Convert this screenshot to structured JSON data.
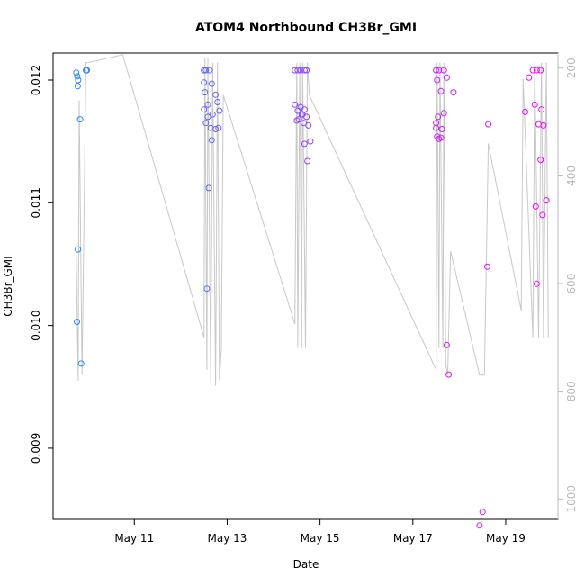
{
  "chart_data": {
    "type": "scatter",
    "title": "ATOM4 Northbound CH3Br_GMI",
    "xlabel": "Date",
    "ylabel": "CH3Br_GMI",
    "xlim": [
      "2018-05-09T06:00",
      "2018-05-20T03:00"
    ],
    "ylim": [
      0.00842,
      0.01222
    ],
    "x_ticks": [
      "May 11",
      "May 13",
      "May 15",
      "May 17",
      "May 19"
    ],
    "y_ticks": [
      "0.009",
      "0.010",
      "0.011",
      "0.012"
    ],
    "y2_ticks": [
      "200",
      "400",
      "600",
      "800",
      "1000"
    ],
    "y2_reversed": true,
    "y2lim": [
      1038,
      172
    ],
    "point_color_gradient": [
      "#1e90ff",
      "#ff00ff"
    ],
    "line_color": "#c8c8c8",
    "series": [
      {
        "points": [
          [
            "2018-05-09T18:00",
            0.01206
          ],
          [
            "2018-05-09T18:30",
            0.01203
          ],
          [
            "2018-05-09T19:00",
            0.012
          ],
          [
            "2018-05-09T18:45",
            0.01195
          ],
          [
            "2018-05-09T20:00",
            0.01168
          ],
          [
            "2018-05-09T18:50",
            0.01062
          ],
          [
            "2018-05-09T18:20",
            0.01003
          ],
          [
            "2018-05-09T20:30",
            0.00969
          ],
          [
            "2018-05-09T23:00",
            0.01208
          ],
          [
            "2018-05-09T23:30",
            0.01208
          ],
          [
            "2018-05-12T12:00",
            0.01208
          ],
          [
            "2018-05-12T13:00",
            0.01208
          ],
          [
            "2018-05-12T15:00",
            0.01208
          ],
          [
            "2018-05-12T12:00",
            0.01198
          ],
          [
            "2018-05-12T12:30",
            0.0119
          ],
          [
            "2018-05-12T16:00",
            0.01197
          ],
          [
            "2018-05-12T12:00",
            0.01176
          ],
          [
            "2018-05-12T14:00",
            0.0118
          ],
          [
            "2018-05-12T18:00",
            0.01188
          ],
          [
            "2018-05-12T19:00",
            0.01182
          ],
          [
            "2018-05-12T20:00",
            0.01175
          ],
          [
            "2018-05-12T14:00",
            0.0117
          ],
          [
            "2018-05-12T13:00",
            0.01165
          ],
          [
            "2018-05-12T16:30",
            0.01172
          ],
          [
            "2018-05-12T15:30",
            0.01161
          ],
          [
            "2018-05-12T18:00",
            0.0116
          ],
          [
            "2018-05-12T19:30",
            0.01161
          ],
          [
            "2018-05-12T16:00",
            0.01151
          ],
          [
            "2018-05-12T14:30",
            0.01112
          ],
          [
            "2018-05-12T13:30",
            0.0103
          ],
          [
            "2018-05-14T11:00",
            0.01208
          ],
          [
            "2018-05-14T12:30",
            0.01208
          ],
          [
            "2018-05-14T14:00",
            0.01208
          ],
          [
            "2018-05-14T16:00",
            0.01208
          ],
          [
            "2018-05-14T17:00",
            0.01208
          ],
          [
            "2018-05-14T11:00",
            0.0118
          ],
          [
            "2018-05-14T12:30",
            0.01175
          ],
          [
            "2018-05-14T14:00",
            0.01178
          ],
          [
            "2018-05-14T15:00",
            0.01172
          ],
          [
            "2018-05-14T16:00",
            0.01176
          ],
          [
            "2018-05-14T17:00",
            0.0117
          ],
          [
            "2018-05-14T13:00",
            0.01168
          ],
          [
            "2018-05-14T15:30",
            0.01165
          ],
          [
            "2018-05-14T12:00",
            0.01167
          ],
          [
            "2018-05-14T14:30",
            0.01172
          ],
          [
            "2018-05-14T18:00",
            0.01163
          ],
          [
            "2018-05-14T16:00",
            0.01148
          ],
          [
            "2018-05-14T19:00",
            0.0115
          ],
          [
            "2018-05-14T17:30",
            0.01134
          ],
          [
            "2018-05-17T12:00",
            0.01208
          ],
          [
            "2018-05-17T13:30",
            0.01208
          ],
          [
            "2018-05-17T16:00",
            0.01208
          ],
          [
            "2018-05-17T14:30",
            0.01191
          ],
          [
            "2018-05-17T12:30",
            0.012
          ],
          [
            "2018-05-17T17:30",
            0.01202
          ],
          [
            "2018-05-17T21:00",
            0.0119
          ],
          [
            "2018-05-17T16:00",
            0.01173
          ],
          [
            "2018-05-17T13:00",
            0.0117
          ],
          [
            "2018-05-17T12:00",
            0.01165
          ],
          [
            "2018-05-17T12:00",
            0.01161
          ],
          [
            "2018-05-17T15:00",
            0.0116
          ],
          [
            "2018-05-17T12:30",
            0.01154
          ],
          [
            "2018-05-17T13:30",
            0.01152
          ],
          [
            "2018-05-17T14:30",
            0.01153
          ],
          [
            "2018-05-17T17:30",
            0.00984
          ],
          [
            "2018-05-17T18:30",
            0.0096
          ],
          [
            "2018-05-18T15:00",
            0.01164
          ],
          [
            "2018-05-18T14:30",
            0.01048
          ],
          [
            "2018-05-18T12:00",
            0.00848
          ],
          [
            "2018-05-18T10:30",
            0.00837
          ],
          [
            "2018-05-19T14:00",
            0.01208
          ],
          [
            "2018-05-19T16:00",
            0.01208
          ],
          [
            "2018-05-19T18:00",
            0.01208
          ],
          [
            "2018-05-19T12:00",
            0.01202
          ],
          [
            "2018-05-19T15:00",
            0.0118
          ],
          [
            "2018-05-19T18:30",
            0.01176
          ],
          [
            "2018-05-19T10:00",
            0.01174
          ],
          [
            "2018-05-19T17:00",
            0.01164
          ],
          [
            "2018-05-19T19:30",
            0.01163
          ],
          [
            "2018-05-19T18:00",
            0.01135
          ],
          [
            "2018-05-19T21:00",
            0.01102
          ],
          [
            "2018-05-19T15:30",
            0.01097
          ],
          [
            "2018-05-19T19:00",
            0.0109
          ],
          [
            "2018-05-19T16:00",
            0.01034
          ]
        ]
      }
    ],
    "altitude_line": [
      [
        "2018-05-09T18:00",
        550
      ],
      [
        "2018-05-09T19:00",
        780
      ],
      [
        "2018-05-09T19:30",
        260
      ],
      [
        "2018-05-09T21:00",
        770
      ],
      [
        "2018-05-09T23:00",
        190
      ],
      [
        "2018-05-10T00:00",
        190
      ],
      [
        "2018-05-10T18:00",
        175
      ],
      [
        "2018-05-12T12:00",
        700
      ],
      [
        "2018-05-12T12:30",
        180
      ],
      [
        "2018-05-12T13:30",
        760
      ],
      [
        "2018-05-12T14:00",
        180
      ],
      [
        "2018-05-12T15:30",
        780
      ],
      [
        "2018-05-12T16:30",
        190
      ],
      [
        "2018-05-12T18:00",
        790
      ],
      [
        "2018-05-12T19:00",
        190
      ],
      [
        "2018-05-12T20:00",
        780
      ],
      [
        "2018-05-12T21:00",
        720
      ],
      [
        "2018-05-12T22:00",
        250
      ],
      [
        "2018-05-14T11:00",
        675
      ],
      [
        "2018-05-14T12:00",
        190
      ],
      [
        "2018-05-14T12:30",
        720
      ],
      [
        "2018-05-14T13:30",
        190
      ],
      [
        "2018-05-14T14:30",
        720
      ],
      [
        "2018-05-14T15:00",
        190
      ],
      [
        "2018-05-14T16:30",
        720
      ],
      [
        "2018-05-14T17:30",
        190
      ],
      [
        "2018-05-14T18:30",
        250
      ],
      [
        "2018-05-17T12:00",
        760
      ],
      [
        "2018-05-17T12:30",
        190
      ],
      [
        "2018-05-17T13:30",
        720
      ],
      [
        "2018-05-17T14:00",
        190
      ],
      [
        "2018-05-17T15:30",
        720
      ],
      [
        "2018-05-17T16:00",
        190
      ],
      [
        "2018-05-17T17:00",
        750
      ],
      [
        "2018-05-17T18:00",
        770
      ],
      [
        "2018-05-17T19:30",
        540
      ],
      [
        "2018-05-18T10:30",
        770
      ],
      [
        "2018-05-18T13:00",
        770
      ],
      [
        "2018-05-18T15:00",
        340
      ],
      [
        "2018-05-19T08:00",
        650
      ],
      [
        "2018-05-19T09:00",
        220
      ],
      [
        "2018-05-19T14:00",
        700
      ],
      [
        "2018-05-19T15:00",
        190
      ],
      [
        "2018-05-19T17:00",
        700
      ],
      [
        "2018-05-19T18:30",
        190
      ],
      [
        "2018-05-19T19:30",
        700
      ],
      [
        "2018-05-19T21:00",
        190
      ],
      [
        "2018-05-19T22:00",
        700
      ]
    ]
  }
}
